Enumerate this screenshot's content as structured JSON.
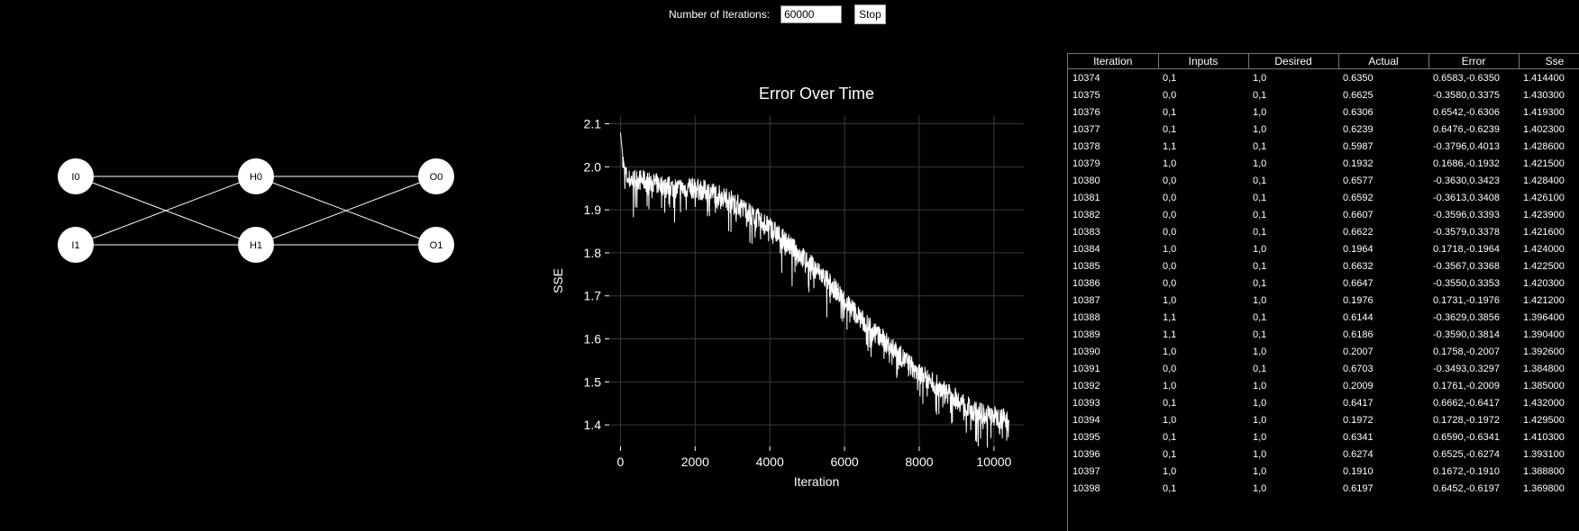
{
  "toolbar": {
    "iterations_label": "Number of Iterations:",
    "iterations_value": "60000",
    "stop_label": "Stop"
  },
  "network": {
    "inputs": [
      "I0",
      "I1"
    ],
    "hidden": [
      "H0",
      "H1"
    ],
    "outputs": [
      "O0",
      "O1"
    ]
  },
  "chart_data": {
    "type": "line",
    "title": "Error Over Time",
    "xlabel": "Iteration",
    "ylabel": "SSE",
    "xlim": [
      -300,
      10800
    ],
    "ylim": [
      1.35,
      2.12
    ],
    "xticks": [
      0,
      2000,
      4000,
      6000,
      8000,
      10000
    ],
    "yticks": [
      1.4,
      1.5,
      1.6,
      1.7,
      1.8,
      1.9,
      2.0,
      2.1
    ],
    "grid": true,
    "line_color": "#ffffff",
    "x": [
      0,
      100,
      200,
      500,
      1000,
      1500,
      2000,
      2500,
      3000,
      3500,
      4000,
      4500,
      5000,
      5500,
      6000,
      6500,
      7000,
      7500,
      8000,
      8500,
      9000,
      9500,
      10000,
      10398
    ],
    "y": [
      2.08,
      1.99,
      1.97,
      1.97,
      1.96,
      1.95,
      1.95,
      1.94,
      1.92,
      1.89,
      1.86,
      1.82,
      1.78,
      1.74,
      1.69,
      1.64,
      1.6,
      1.56,
      1.52,
      1.49,
      1.46,
      1.43,
      1.42,
      1.41
    ],
    "noise": 0.05
  },
  "table": {
    "columns": [
      "Iteration",
      "Inputs",
      "Desired",
      "Actual",
      "Error",
      "Sse"
    ],
    "rows": [
      [
        "10374",
        "0,1",
        "1,0",
        "0.6350",
        "0.6583,-0.6350",
        "1.414400"
      ],
      [
        "10375",
        "0,0",
        "0,1",
        "0.6625",
        "-0.3580,0.3375",
        "1.430300"
      ],
      [
        "10376",
        "0,1",
        "1,0",
        "0.6306",
        "0.6542,-0.6306",
        "1.419300"
      ],
      [
        "10377",
        "0,1",
        "1,0",
        "0.6239",
        "0.6476,-0.6239",
        "1.402300"
      ],
      [
        "10378",
        "1,1",
        "0,1",
        "0.5987",
        "-0.3796,0.4013",
        "1.428600"
      ],
      [
        "10379",
        "1,0",
        "1,0",
        "0.1932",
        "0.1686,-0.1932",
        "1.421500"
      ],
      [
        "10380",
        "0,0",
        "0,1",
        "0.6577",
        "-0.3630,0.3423",
        "1.428400"
      ],
      [
        "10381",
        "0,0",
        "0,1",
        "0.6592",
        "-0.3613,0.3408",
        "1.426100"
      ],
      [
        "10382",
        "0,0",
        "0,1",
        "0.6607",
        "-0.3596,0.3393",
        "1.423900"
      ],
      [
        "10383",
        "0,0",
        "0,1",
        "0.6622",
        "-0.3579,0.3378",
        "1.421600"
      ],
      [
        "10384",
        "1,0",
        "1,0",
        "0.1964",
        "0.1718,-0.1964",
        "1.424000"
      ],
      [
        "10385",
        "0,0",
        "0,1",
        "0.6632",
        "-0.3567,0.3368",
        "1.422500"
      ],
      [
        "10386",
        "0,0",
        "0,1",
        "0.6647",
        "-0.3550,0.3353",
        "1.420300"
      ],
      [
        "10387",
        "1,0",
        "1,0",
        "0.1976",
        "0.1731,-0.1976",
        "1.421200"
      ],
      [
        "10388",
        "1,1",
        "0,1",
        "0.6144",
        "-0.3629,0.3856",
        "1.396400"
      ],
      [
        "10389",
        "1,1",
        "0,1",
        "0.6186",
        "-0.3590,0.3814",
        "1.390400"
      ],
      [
        "10390",
        "1,0",
        "1,0",
        "0.2007",
        "0.1758,-0.2007",
        "1.392600"
      ],
      [
        "10391",
        "0,0",
        "0,1",
        "0.6703",
        "-0.3493,0.3297",
        "1.384800"
      ],
      [
        "10392",
        "1,0",
        "1,0",
        "0.2009",
        "0.1761,-0.2009",
        "1.385000"
      ],
      [
        "10393",
        "0,1",
        "1,0",
        "0.6417",
        "0.6662,-0.6417",
        "1.432000"
      ],
      [
        "10394",
        "1,0",
        "1,0",
        "0.1972",
        "0.1728,-0.1972",
        "1.429500"
      ],
      [
        "10395",
        "0,1",
        "1,0",
        "0.6341",
        "0.6590,-0.6341",
        "1.410300"
      ],
      [
        "10396",
        "0,1",
        "1,0",
        "0.6274",
        "0.6525,-0.6274",
        "1.393100"
      ],
      [
        "10397",
        "1,0",
        "1,0",
        "0.1910",
        "0.1672,-0.1910",
        "1.388800"
      ],
      [
        "10398",
        "0,1",
        "1,0",
        "0.6197",
        "0.6452,-0.6197",
        "1.369800"
      ]
    ]
  }
}
